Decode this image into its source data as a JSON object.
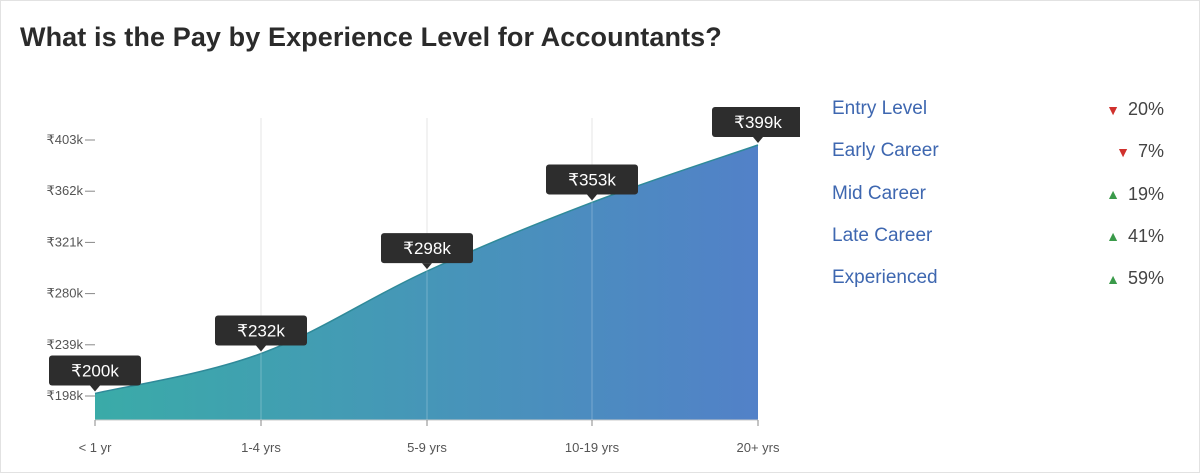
{
  "header": {
    "title": "What is the Pay by Experience Level for Accountants?"
  },
  "chart_data": {
    "type": "area",
    "categories": [
      "< 1 yr",
      "1-4 yrs",
      "5-9 yrs",
      "10-19 yrs",
      "20+ yrs"
    ],
    "values": [
      200,
      232,
      298,
      353,
      399
    ],
    "value_labels": [
      "₹200k",
      "₹232k",
      "₹298k",
      "₹353k",
      "₹399k"
    ],
    "y_ticks": [
      198,
      239,
      280,
      321,
      362,
      403
    ],
    "y_tick_labels": [
      "₹198k",
      "₹239k",
      "₹280k",
      "₹321k",
      "₹362k",
      "₹403k"
    ],
    "ylim": [
      198,
      403
    ],
    "grid": "vertical",
    "colors": {
      "gradient_start": "#3aaba8",
      "gradient_end": "#5281c8",
      "tooltip": "#2d2d2d"
    }
  },
  "legend": {
    "items": [
      {
        "label": "Entry Level",
        "direction": "down",
        "change": "20%"
      },
      {
        "label": "Early Career",
        "direction": "down",
        "change": "7%"
      },
      {
        "label": "Mid Career",
        "direction": "up",
        "change": "19%"
      },
      {
        "label": "Late Career",
        "direction": "up",
        "change": "41%"
      },
      {
        "label": "Experienced",
        "direction": "up",
        "change": "59%"
      }
    ]
  }
}
